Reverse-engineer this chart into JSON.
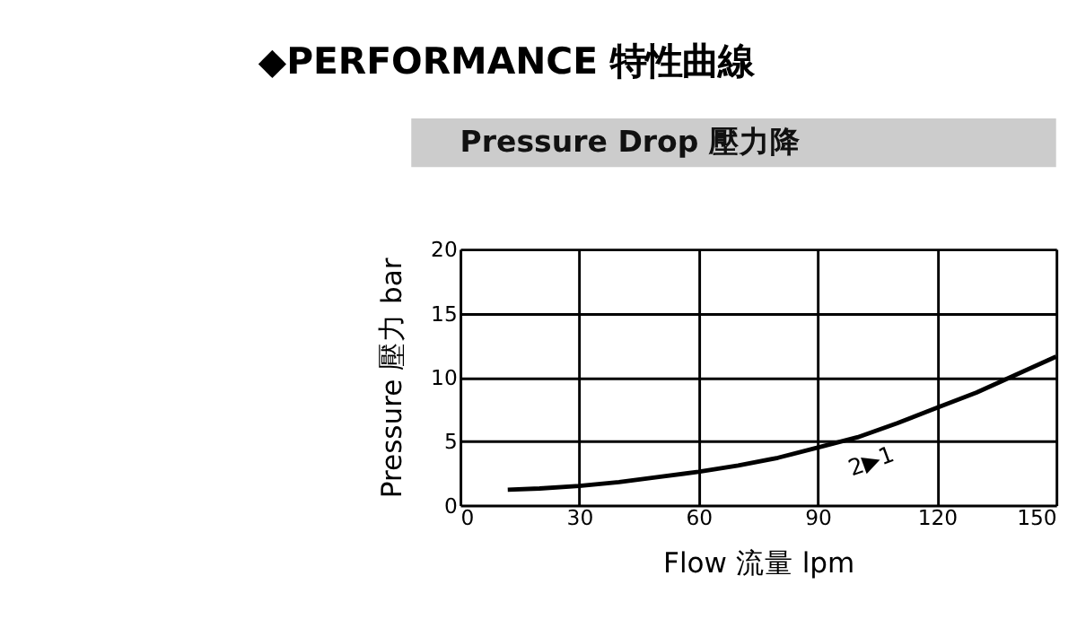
{
  "chart_data": {
    "type": "line",
    "title": "◆PERFORMANCE 特性曲線",
    "subtitle": "Pressure Drop 壓力降",
    "xlabel": "Flow 流量 lpm",
    "ylabel": "Pressure 壓力 bar",
    "x": [
      12,
      20,
      30,
      40,
      50,
      60,
      70,
      80,
      90,
      100,
      110,
      120,
      130,
      140,
      150
    ],
    "series": [
      {
        "color": "#000000",
        "values": [
          1.2,
          1.3,
          1.5,
          1.8,
          2.2,
          2.6,
          3.1,
          3.7,
          4.5,
          5.3,
          6.4,
          7.6,
          8.8,
          10.2,
          11.6
        ]
      }
    ],
    "annotations": [
      "2▶1"
    ],
    "xlim": [
      0,
      150
    ],
    "ylim": [
      0,
      20
    ],
    "xticks": [
      0,
      30,
      60,
      90,
      120,
      150
    ],
    "yticks": [
      0,
      5,
      10,
      15,
      20
    ],
    "grid": true,
    "marker": "none",
    "line_style": "solid"
  }
}
